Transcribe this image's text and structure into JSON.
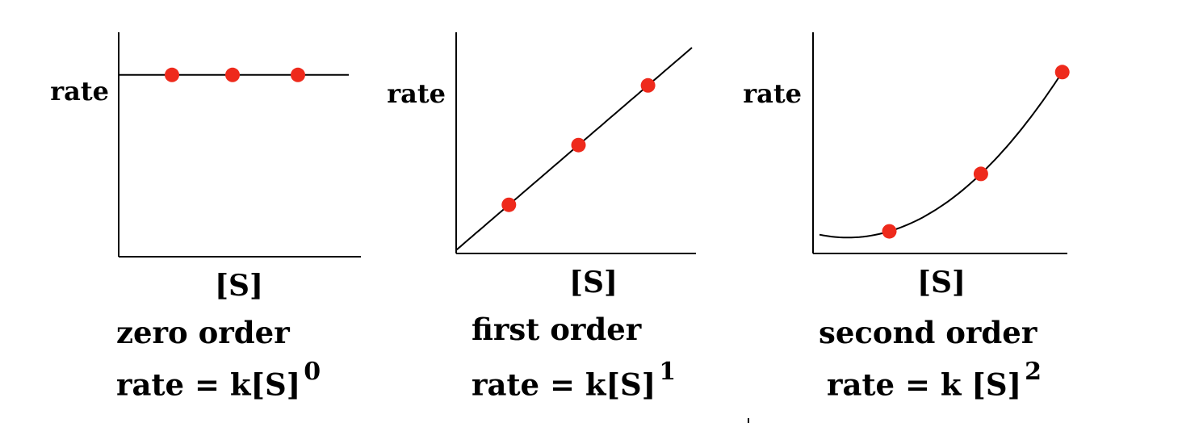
{
  "chart_data": [
    {
      "type": "line",
      "title": "zero order",
      "equation": {
        "base": "rate = k[S]",
        "exponent": "0"
      },
      "xlabel": "[S]",
      "ylabel": "rate",
      "xlim": [
        0,
        10
      ],
      "ylim": [
        0,
        10
      ],
      "curve": "constant",
      "x": [
        2.2,
        4.7,
        7.4
      ],
      "y": [
        8.1,
        8.1,
        8.1
      ],
      "grid": false,
      "colors": {
        "points": "#ee2a1c",
        "line": "#000000"
      }
    },
    {
      "type": "line",
      "title": "first order",
      "equation": {
        "base": "rate = k[S]",
        "exponent": "1"
      },
      "xlabel": "[S]",
      "ylabel": "rate",
      "xlim": [
        0,
        10
      ],
      "ylim": [
        0,
        10
      ],
      "curve": "linear",
      "x": [
        2.2,
        5.1,
        8.0
      ],
      "y": [
        2.2,
        4.9,
        7.6
      ],
      "grid": false,
      "colors": {
        "points": "#ee2a1c",
        "line": "#000000"
      }
    },
    {
      "type": "line",
      "title": "second order",
      "equation": {
        "base": "rate = k [S]",
        "exponent": "2"
      },
      "xlabel": "[S]",
      "ylabel": "rate",
      "xlim": [
        0,
        10
      ],
      "ylim": [
        0,
        10
      ],
      "curve": "quadratic",
      "x": [
        3.0,
        6.6,
        9.8
      ],
      "y": [
        1.0,
        3.6,
        8.2
      ],
      "grid": false,
      "colors": {
        "points": "#ee2a1c",
        "line": "#000000"
      }
    }
  ]
}
